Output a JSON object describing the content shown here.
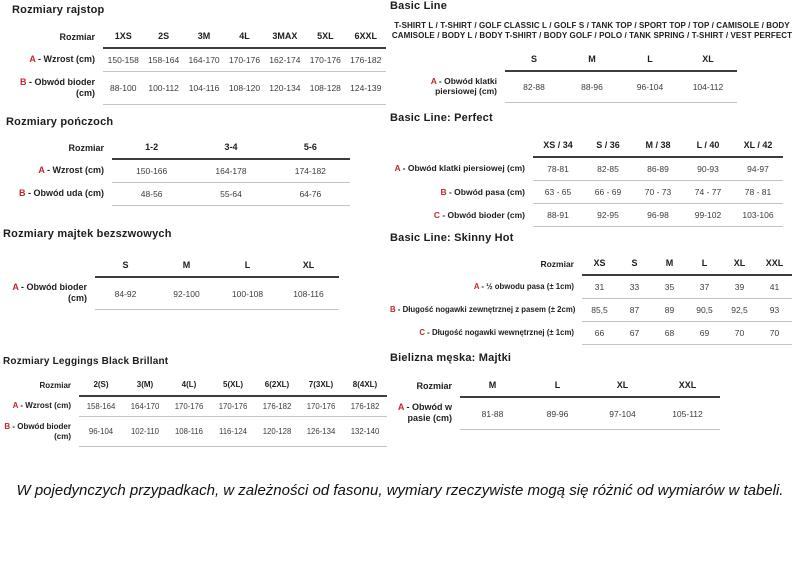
{
  "colors": {
    "accent_red": "#c1272d"
  },
  "sections": {
    "rajstopy": {
      "title": "Rozmiary rajstop",
      "table": {
        "corner": "Rozmiar",
        "columns": [
          "1XS",
          "2S",
          "3M",
          "4L",
          "3MAX",
          "5XL",
          "6XXL"
        ],
        "rows": [
          {
            "letter": "A",
            "label": "Wzrost (cm)",
            "values": [
              "150-158",
              "158-164",
              "164-170",
              "170-176",
              "162-174",
              "170-176",
              "176-182"
            ]
          },
          {
            "letter": "B",
            "label": "Obwód bioder (cm)",
            "values": [
              "88-100",
              "100-112",
              "104-116",
              "108-120",
              "120-134",
              "108-128",
              "124-139"
            ]
          }
        ]
      }
    },
    "ponczochy": {
      "title": "Rozmiary pończoch",
      "table": {
        "corner": "Rozmiar",
        "columns": [
          "1-2",
          "3-4",
          "5-6"
        ],
        "rows": [
          {
            "letter": "A",
            "label": "Wzrost (cm)",
            "values": [
              "150-166",
              "164-178",
              "174-182"
            ]
          },
          {
            "letter": "B",
            "label": "Obwód uda (cm)",
            "values": [
              "48-56",
              "55-64",
              "64-76"
            ]
          }
        ]
      }
    },
    "majtki_bezszwowe": {
      "title": "Rozmiary majtek bezszwowych",
      "table": {
        "corner": "",
        "columns": [
          "S",
          "M",
          "L",
          "XL"
        ],
        "rows": [
          {
            "letter": "A",
            "label": "Obwód bioder (cm)",
            "values": [
              "84-92",
              "92-100",
              "100-108",
              "108-116"
            ]
          }
        ]
      }
    },
    "leggings": {
      "title": "Rozmiary Leggings Black Brillant",
      "table": {
        "corner": "Rozmiar",
        "columns": [
          "2(S)",
          "3(M)",
          "4(L)",
          "5(XL)",
          "6(2XL)",
          "7(3XL)",
          "8(4XL)"
        ],
        "rows": [
          {
            "letter": "A",
            "label": "Wzrost (cm)",
            "values": [
              "158-164",
              "164-170",
              "170-176",
              "170-176",
              "176-182",
              "170-176",
              "176-182"
            ]
          },
          {
            "letter": "B",
            "label": "Obwód bioder (cm)",
            "values": [
              "96-104",
              "102-110",
              "108-116",
              "116-124",
              "120-128",
              "126-134",
              "132-140"
            ]
          }
        ]
      }
    },
    "basic_line": {
      "title": "Basic Line",
      "products": "T-SHIRT L / T-SHIRT / GOLF CLASSIC L / GOLF S / TANK TOP / SPORT TOP / TOP / CAMISOLE / BODY CAMISOLE / BODY L / BODY T-SHIRT / BODY GOLF / POLO / TANK SPRING / T-SHIRT / VEST PERFECT",
      "table": {
        "corner": "",
        "columns": [
          "S",
          "M",
          "L",
          "XL"
        ],
        "rows": [
          {
            "letter": "A",
            "label": "Obwód klatki piersiowej (cm)",
            "values": [
              "82-88",
              "88-96",
              "96-104",
              "104-112"
            ]
          }
        ]
      }
    },
    "perfect": {
      "title": "Basic Line: Perfect",
      "table": {
        "corner": "",
        "columns": [
          "XS / 34",
          "S / 36",
          "M / 38",
          "L / 40",
          "XL / 42"
        ],
        "rows": [
          {
            "letter": "A",
            "label": "Obwód klatki piersiowej (cm)",
            "values": [
              "78-81",
              "82-85",
              "86-89",
              "90-93",
              "94-97"
            ]
          },
          {
            "letter": "B",
            "label": "Obwód pasa (cm)",
            "values": [
              "63 - 65",
              "66 - 69",
              "70 - 73",
              "74 - 77",
              "78 - 81"
            ]
          },
          {
            "letter": "C",
            "label": "Obwód bioder (cm)",
            "values": [
              "88-91",
              "92-95",
              "96-98",
              "99-102",
              "103-106"
            ]
          }
        ]
      }
    },
    "skinny_hot": {
      "title": "Basic Line: Skinny Hot",
      "table": {
        "corner": "Rozmiar",
        "columns": [
          "XS",
          "S",
          "M",
          "L",
          "XL",
          "XXL"
        ],
        "rows": [
          {
            "letter": "A",
            "label": "½ obwodu pasa (± 1cm)",
            "values": [
              "31",
              "33",
              "35",
              "37",
              "39",
              "41"
            ]
          },
          {
            "letter": "B",
            "label": "Długość nogawki zewnętrznej z pasem (± 2cm)",
            "values": [
              "85,5",
              "87",
              "89",
              "90,5",
              "92,5",
              "93"
            ]
          },
          {
            "letter": "C",
            "label": "Długość nogawki wewnętrznej (± 1cm)",
            "values": [
              "66",
              "67",
              "68",
              "69",
              "70",
              "70"
            ]
          }
        ]
      }
    },
    "bielizna_meska": {
      "title": "Bielizna męska: Majtki",
      "table": {
        "corner": "Rozmiar",
        "columns": [
          "M",
          "L",
          "XL",
          "XXL"
        ],
        "rows": [
          {
            "letter": "A",
            "label": "Obwód w pasie (cm)",
            "values": [
              "81-88",
              "89-96",
              "97-104",
              "105-112"
            ]
          }
        ]
      }
    }
  },
  "footer": {
    "note": "W pojedynczych przypadkach, w zależności od fasonu, wymiary rzeczywiste mogą się różnić od wymiarów w tabeli."
  }
}
